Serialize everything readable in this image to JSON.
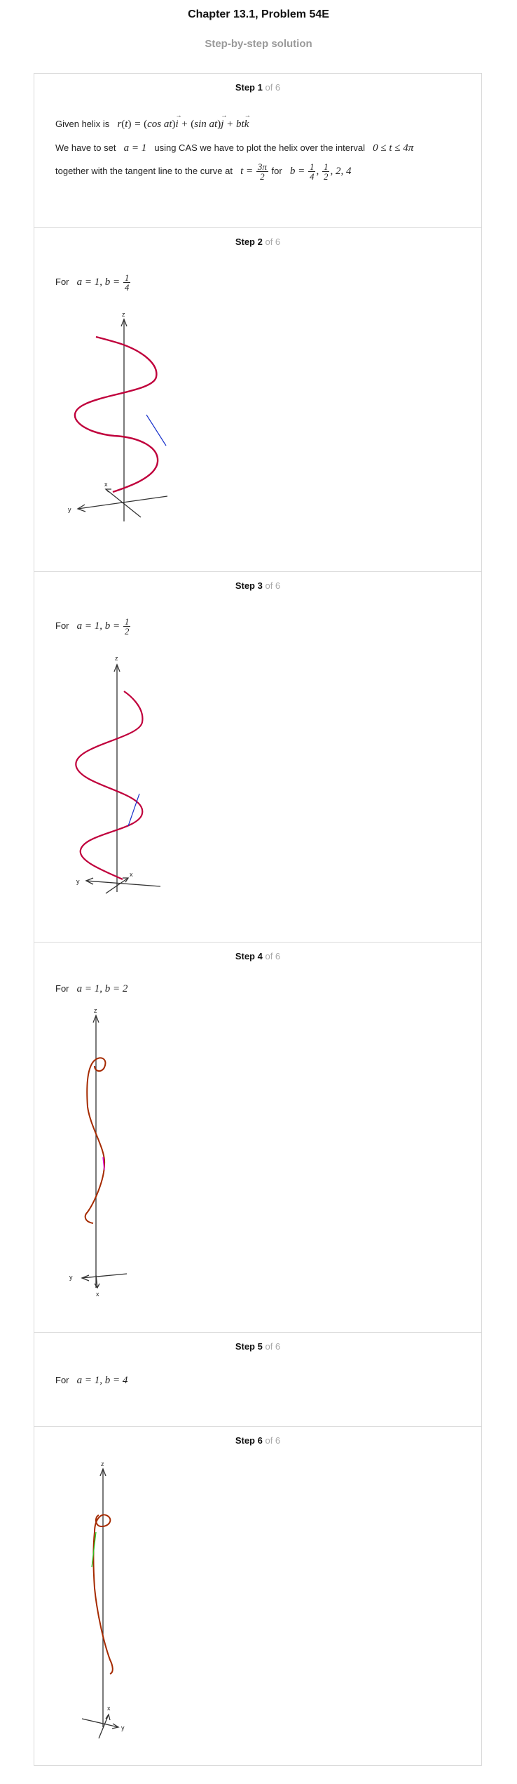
{
  "header": {
    "title": "Chapter 13.1, Problem 54E",
    "subtitle": "Step-by-step solution"
  },
  "steps": [
    {
      "num": "Step 1",
      "of": "of 6",
      "line1_prefix": "Given helix is",
      "line2_prefix": "We have to set",
      "line2_mid": "using CAS we have to plot the helix over the interval",
      "line3_prefix": "together with the tangent line to the curve at",
      "line3_mid": "for"
    },
    {
      "num": "Step 2",
      "of": "of 6",
      "prefix": "For"
    },
    {
      "num": "Step 3",
      "of": "of 6",
      "prefix": "For"
    },
    {
      "num": "Step 4",
      "of": "of 6",
      "prefix": "For"
    },
    {
      "num": "Step 5",
      "of": "of 6",
      "prefix": "For"
    },
    {
      "num": "Step 6",
      "of": "of 6"
    }
  ],
  "axis_labels": {
    "z": "z",
    "y": "y",
    "x": "x"
  },
  "colors": {
    "helix": "#c0003c",
    "helix_dark": "#a52a00",
    "tangent_blue": "#1a33cc",
    "tangent_magenta": "#e000e0",
    "tangent_green": "#22cc22",
    "axis": "#333333",
    "step_of": "#a9a9a9"
  }
}
